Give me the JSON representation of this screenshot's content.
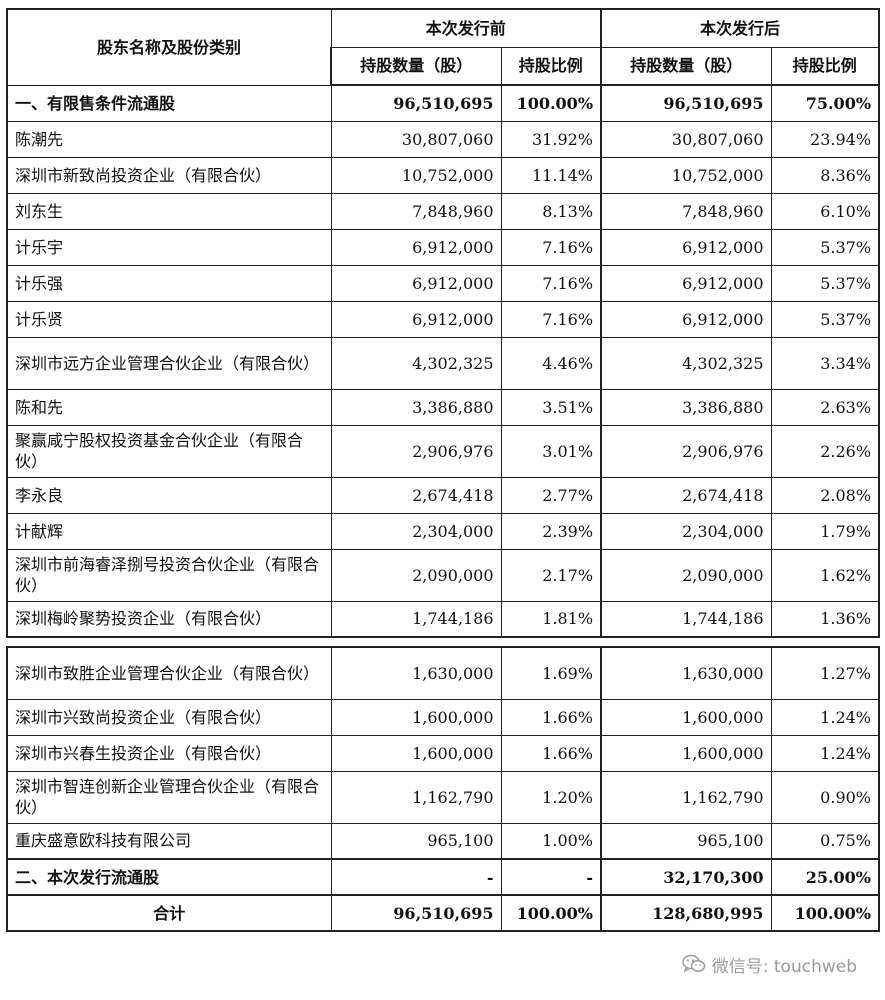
{
  "header": {
    "name_col": "股东名称及股份类别",
    "before": "本次发行前",
    "after": "本次发行后",
    "shares_col": "持股数量（股）",
    "ratio_col": "持股比例"
  },
  "section1": {
    "label": "一、有限售条件流通股",
    "before_shares": "96,510,695",
    "before_ratio": "100.00%",
    "after_shares": "96,510,695",
    "after_ratio": "75.00%"
  },
  "rows": [
    {
      "name": "陈潮先",
      "bs": "30,807,060",
      "br": "31.92%",
      "as": "30,807,060",
      "ar": "23.94%"
    },
    {
      "name": "深圳市新致尚投资企业（有限合伙）",
      "bs": "10,752,000",
      "br": "11.14%",
      "as": "10,752,000",
      "ar": "8.36%"
    },
    {
      "name": "刘东生",
      "bs": "7,848,960",
      "br": "8.13%",
      "as": "7,848,960",
      "ar": "6.10%"
    },
    {
      "name": "计乐宇",
      "bs": "6,912,000",
      "br": "7.16%",
      "as": "6,912,000",
      "ar": "5.37%"
    },
    {
      "name": "计乐强",
      "bs": "6,912,000",
      "br": "7.16%",
      "as": "6,912,000",
      "ar": "5.37%"
    },
    {
      "name": "计乐贤",
      "bs": "6,912,000",
      "br": "7.16%",
      "as": "6,912,000",
      "ar": "5.37%"
    },
    {
      "name": "深圳市远方企业管理合伙企业（有限合伙）",
      "bs": "4,302,325",
      "br": "4.46%",
      "as": "4,302,325",
      "ar": "3.34%"
    },
    {
      "name": "陈和先",
      "bs": "3,386,880",
      "br": "3.51%",
      "as": "3,386,880",
      "ar": "2.63%"
    },
    {
      "name": "聚赢咸宁股权投资基金合伙企业（有限合伙）",
      "bs": "2,906,976",
      "br": "3.01%",
      "as": "2,906,976",
      "ar": "2.26%"
    },
    {
      "name": "李永良",
      "bs": "2,674,418",
      "br": "2.77%",
      "as": "2,674,418",
      "ar": "2.08%"
    },
    {
      "name": "计献辉",
      "bs": "2,304,000",
      "br": "2.39%",
      "as": "2,304,000",
      "ar": "1.79%"
    },
    {
      "name": "深圳市前海睿泽捌号投资合伙企业（有限合伙）",
      "bs": "2,090,000",
      "br": "2.17%",
      "as": "2,090,000",
      "ar": "1.62%"
    },
    {
      "name": "深圳梅岭聚势投资企业（有限合伙）",
      "bs": "1,744,186",
      "br": "1.81%",
      "as": "1,744,186",
      "ar": "1.36%"
    }
  ],
  "rows2": [
    {
      "name": "深圳市致胜企业管理合伙企业（有限合伙）",
      "bs": "1,630,000",
      "br": "1.69%",
      "as": "1,630,000",
      "ar": "1.27%"
    },
    {
      "name": "深圳市兴致尚投资企业（有限合伙）",
      "bs": "1,600,000",
      "br": "1.66%",
      "as": "1,600,000",
      "ar": "1.24%"
    },
    {
      "name": "深圳市兴春生投资企业（有限合伙）",
      "bs": "1,600,000",
      "br": "1.66%",
      "as": "1,600,000",
      "ar": "1.24%"
    },
    {
      "name": "深圳市智连创新企业管理合伙企业（有限合伙）",
      "bs": "1,162,790",
      "br": "1.20%",
      "as": "1,162,790",
      "ar": "0.90%"
    },
    {
      "name": "重庆盛意欧科技有限公司",
      "bs": "965,100",
      "br": "1.00%",
      "as": "965,100",
      "ar": "0.75%"
    }
  ],
  "section2": {
    "label": "二、本次发行流通股",
    "before_shares": "-",
    "before_ratio": "-",
    "after_shares": "32,170,300",
    "after_ratio": "25.00%"
  },
  "total": {
    "label": "合计",
    "before_shares": "96,510,695",
    "before_ratio": "100.00%",
    "after_shares": "128,680,995",
    "after_ratio": "100.00%"
  },
  "watermark": {
    "icon": "wechat-icon",
    "text": "微信号: touchweb"
  }
}
